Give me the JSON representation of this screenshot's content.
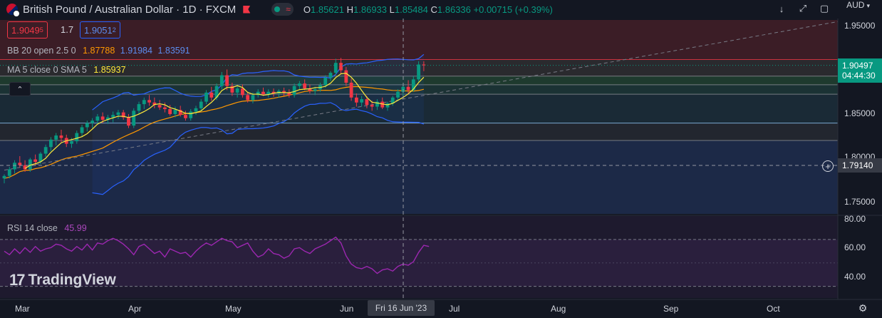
{
  "header": {
    "title": "British Pound / Australian Dollar · 1D · FXCM",
    "ohlc": {
      "o_label": "O",
      "o": "1.85621",
      "h_label": "H",
      "h": "1.86933",
      "l_label": "L",
      "l": "1.85484",
      "c_label": "C",
      "c": "1.86336",
      "change": "+0.00715 (+0.39%)"
    },
    "currency": "AUD",
    "sell_price": "1.9049",
    "sell_sup": "5",
    "spread": "1.7",
    "buy_price": "1.9051",
    "buy_sup": "2"
  },
  "legend": {
    "bb": {
      "label": "BB 20 open 2.5 0",
      "v1": "1.87788",
      "v2": "1.91984",
      "v3": "1.83591"
    },
    "ma": {
      "label": "MA 5 close 0 SMA 5",
      "value": "1.85937"
    },
    "rsi": {
      "label": "RSI 14 close",
      "value": "45.99"
    }
  },
  "watermark": "TradingView",
  "crosshair_date": "Fri 16 Jun '23",
  "price_axis": {
    "labels": [
      "1.95000",
      "1.85000",
      "1.80000",
      "1.75000"
    ],
    "last_price": "1.90497",
    "countdown": "04:44:30",
    "crosshair_price": "1.79140"
  },
  "rsi_axis": {
    "labels": [
      "80.00",
      "60.00",
      "40.00"
    ]
  },
  "time_axis": {
    "labels": [
      "Mar",
      "Apr",
      "May",
      "Jun",
      "Jul",
      "Aug",
      "Sep",
      "Oct"
    ]
  },
  "colors": {
    "up": "#089981",
    "down": "#f23645",
    "bb_basis": "#ff9800",
    "bb_band": "#2962ff",
    "ma": "#ffeb3b",
    "rsi": "#9c27b0",
    "bg": "#131722"
  },
  "chart_data": {
    "type": "candlestick",
    "symbol": "GBPAUD",
    "price_range": [
      1.725,
      1.96
    ],
    "candles": [
      {
        "o": 1.768,
        "h": 1.773,
        "l": 1.762,
        "c": 1.771
      },
      {
        "o": 1.771,
        "h": 1.782,
        "l": 1.768,
        "c": 1.779
      },
      {
        "o": 1.779,
        "h": 1.79,
        "l": 1.774,
        "c": 1.787
      },
      {
        "o": 1.787,
        "h": 1.795,
        "l": 1.781,
        "c": 1.784
      },
      {
        "o": 1.784,
        "h": 1.79,
        "l": 1.776,
        "c": 1.779
      },
      {
        "o": 1.779,
        "h": 1.793,
        "l": 1.776,
        "c": 1.791
      },
      {
        "o": 1.791,
        "h": 1.797,
        "l": 1.784,
        "c": 1.788
      },
      {
        "o": 1.788,
        "h": 1.8,
        "l": 1.785,
        "c": 1.798
      },
      {
        "o": 1.798,
        "h": 1.809,
        "l": 1.794,
        "c": 1.806
      },
      {
        "o": 1.806,
        "h": 1.818,
        "l": 1.801,
        "c": 1.815
      },
      {
        "o": 1.815,
        "h": 1.823,
        "l": 1.808,
        "c": 1.82
      },
      {
        "o": 1.82,
        "h": 1.827,
        "l": 1.812,
        "c": 1.817
      },
      {
        "o": 1.817,
        "h": 1.821,
        "l": 1.806,
        "c": 1.81
      },
      {
        "o": 1.81,
        "h": 1.817,
        "l": 1.805,
        "c": 1.813
      },
      {
        "o": 1.813,
        "h": 1.826,
        "l": 1.81,
        "c": 1.823
      },
      {
        "o": 1.823,
        "h": 1.833,
        "l": 1.818,
        "c": 1.83
      },
      {
        "o": 1.83,
        "h": 1.838,
        "l": 1.825,
        "c": 1.835
      },
      {
        "o": 1.835,
        "h": 1.841,
        "l": 1.829,
        "c": 1.838
      },
      {
        "o": 1.838,
        "h": 1.846,
        "l": 1.833,
        "c": 1.843
      },
      {
        "o": 1.843,
        "h": 1.848,
        "l": 1.835,
        "c": 1.839
      },
      {
        "o": 1.839,
        "h": 1.845,
        "l": 1.834,
        "c": 1.842
      },
      {
        "o": 1.842,
        "h": 1.849,
        "l": 1.836,
        "c": 1.845
      },
      {
        "o": 1.845,
        "h": 1.851,
        "l": 1.84,
        "c": 1.848
      },
      {
        "o": 1.848,
        "h": 1.851,
        "l": 1.839,
        "c": 1.842
      },
      {
        "o": 1.842,
        "h": 1.846,
        "l": 1.829,
        "c": 1.832
      },
      {
        "o": 1.832,
        "h": 1.853,
        "l": 1.829,
        "c": 1.85
      },
      {
        "o": 1.85,
        "h": 1.861,
        "l": 1.845,
        "c": 1.858
      },
      {
        "o": 1.858,
        "h": 1.866,
        "l": 1.852,
        "c": 1.863
      },
      {
        "o": 1.863,
        "h": 1.869,
        "l": 1.856,
        "c": 1.86
      },
      {
        "o": 1.86,
        "h": 1.866,
        "l": 1.853,
        "c": 1.857
      },
      {
        "o": 1.857,
        "h": 1.863,
        "l": 1.851,
        "c": 1.854
      },
      {
        "o": 1.854,
        "h": 1.86,
        "l": 1.848,
        "c": 1.852
      },
      {
        "o": 1.852,
        "h": 1.857,
        "l": 1.844,
        "c": 1.846
      },
      {
        "o": 1.846,
        "h": 1.855,
        "l": 1.842,
        "c": 1.851
      },
      {
        "o": 1.851,
        "h": 1.856,
        "l": 1.843,
        "c": 1.845
      },
      {
        "o": 1.845,
        "h": 1.85,
        "l": 1.838,
        "c": 1.841
      },
      {
        "o": 1.841,
        "h": 1.852,
        "l": 1.838,
        "c": 1.849
      },
      {
        "o": 1.849,
        "h": 1.856,
        "l": 1.845,
        "c": 1.853
      },
      {
        "o": 1.853,
        "h": 1.864,
        "l": 1.85,
        "c": 1.861
      },
      {
        "o": 1.861,
        "h": 1.875,
        "l": 1.858,
        "c": 1.872
      },
      {
        "o": 1.872,
        "h": 1.879,
        "l": 1.862,
        "c": 1.866
      },
      {
        "o": 1.866,
        "h": 1.883,
        "l": 1.863,
        "c": 1.88
      },
      {
        "o": 1.88,
        "h": 1.897,
        "l": 1.876,
        "c": 1.893
      },
      {
        "o": 1.893,
        "h": 1.9,
        "l": 1.875,
        "c": 1.88
      },
      {
        "o": 1.88,
        "h": 1.884,
        "l": 1.868,
        "c": 1.872
      },
      {
        "o": 1.872,
        "h": 1.88,
        "l": 1.866,
        "c": 1.877
      },
      {
        "o": 1.877,
        "h": 1.882,
        "l": 1.866,
        "c": 1.869
      },
      {
        "o": 1.869,
        "h": 1.873,
        "l": 1.86,
        "c": 1.863
      },
      {
        "o": 1.863,
        "h": 1.872,
        "l": 1.859,
        "c": 1.869
      },
      {
        "o": 1.869,
        "h": 1.876,
        "l": 1.866,
        "c": 1.873
      },
      {
        "o": 1.873,
        "h": 1.878,
        "l": 1.868,
        "c": 1.87
      },
      {
        "o": 1.87,
        "h": 1.876,
        "l": 1.866,
        "c": 1.873
      },
      {
        "o": 1.873,
        "h": 1.877,
        "l": 1.867,
        "c": 1.871
      },
      {
        "o": 1.871,
        "h": 1.876,
        "l": 1.866,
        "c": 1.874
      },
      {
        "o": 1.874,
        "h": 1.878,
        "l": 1.868,
        "c": 1.872
      },
      {
        "o": 1.872,
        "h": 1.876,
        "l": 1.866,
        "c": 1.869
      },
      {
        "o": 1.869,
        "h": 1.883,
        "l": 1.866,
        "c": 1.88
      },
      {
        "o": 1.88,
        "h": 1.886,
        "l": 1.876,
        "c": 1.883
      },
      {
        "o": 1.883,
        "h": 1.888,
        "l": 1.875,
        "c": 1.877
      },
      {
        "o": 1.877,
        "h": 1.882,
        "l": 1.871,
        "c": 1.874
      },
      {
        "o": 1.874,
        "h": 1.879,
        "l": 1.869,
        "c": 1.876
      },
      {
        "o": 1.876,
        "h": 1.884,
        "l": 1.873,
        "c": 1.881
      },
      {
        "o": 1.881,
        "h": 1.893,
        "l": 1.878,
        "c": 1.89
      },
      {
        "o": 1.89,
        "h": 1.898,
        "l": 1.886,
        "c": 1.896
      },
      {
        "o": 1.896,
        "h": 1.913,
        "l": 1.893,
        "c": 1.908
      },
      {
        "o": 1.908,
        "h": 1.914,
        "l": 1.895,
        "c": 1.899
      },
      {
        "o": 1.899,
        "h": 1.903,
        "l": 1.88,
        "c": 1.884
      },
      {
        "o": 1.884,
        "h": 1.889,
        "l": 1.862,
        "c": 1.866
      },
      {
        "o": 1.866,
        "h": 1.871,
        "l": 1.855,
        "c": 1.86
      },
      {
        "o": 1.86,
        "h": 1.868,
        "l": 1.855,
        "c": 1.864
      },
      {
        "o": 1.864,
        "h": 1.868,
        "l": 1.853,
        "c": 1.857
      },
      {
        "o": 1.857,
        "h": 1.862,
        "l": 1.85,
        "c": 1.855
      },
      {
        "o": 1.855,
        "h": 1.864,
        "l": 1.851,
        "c": 1.861
      },
      {
        "o": 1.861,
        "h": 1.866,
        "l": 1.852,
        "c": 1.854
      },
      {
        "o": 1.854,
        "h": 1.861,
        "l": 1.85,
        "c": 1.859
      },
      {
        "o": 1.859,
        "h": 1.868,
        "l": 1.856,
        "c": 1.866
      },
      {
        "o": 1.866,
        "h": 1.876,
        "l": 1.862,
        "c": 1.873
      },
      {
        "o": 1.873,
        "h": 1.882,
        "l": 1.868,
        "c": 1.879
      },
      {
        "o": 1.879,
        "h": 1.887,
        "l": 1.871,
        "c": 1.875
      },
      {
        "o": 1.875,
        "h": 1.892,
        "l": 1.873,
        "c": 1.888
      },
      {
        "o": 1.888,
        "h": 1.91,
        "l": 1.885,
        "c": 1.906
      },
      {
        "o": 1.906,
        "h": 1.91,
        "l": 1.898,
        "c": 1.905
      }
    ],
    "rsi": [
      60,
      57,
      62,
      58,
      63,
      59,
      64,
      60,
      62,
      63,
      66,
      65,
      62,
      60,
      64,
      61,
      66,
      61,
      67,
      66,
      69,
      71,
      69,
      66,
      62,
      57,
      64,
      66,
      62,
      58,
      60,
      55,
      62,
      60,
      58,
      59,
      55,
      60,
      64,
      67,
      65,
      68,
      71,
      69,
      68,
      63,
      65,
      67,
      60,
      55,
      57,
      62,
      58,
      57,
      54,
      56,
      62,
      63,
      60,
      58,
      62,
      64,
      66,
      69,
      72,
      67,
      56,
      49,
      46,
      45,
      47,
      45,
      41,
      44,
      45,
      43,
      47,
      49,
      48,
      51,
      59,
      65,
      64
    ],
    "reference_levels": [
      1.912,
      1.892,
      1.8815,
      1.87,
      1.835,
      1.814,
      1.7914
    ],
    "trendline": {
      "from_candle": 0,
      "from_price": 1.778,
      "to_price": 1.958
    }
  }
}
